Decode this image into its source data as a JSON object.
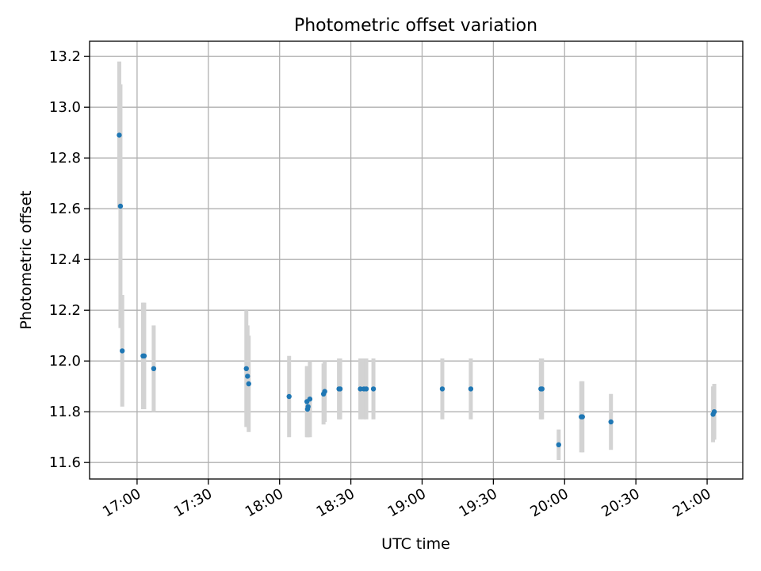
{
  "chart_data": {
    "type": "scatter",
    "title": "Photometric offset variation",
    "xlabel": "UTC time",
    "ylabel": "Photometric offset",
    "xlim": [
      "16:40",
      "21:15"
    ],
    "ylim": [
      11.535,
      13.26
    ],
    "grid": true,
    "x_ticks": [
      "17:00",
      "17:30",
      "18:00",
      "18:30",
      "19:00",
      "19:30",
      "20:00",
      "20:30",
      "21:00"
    ],
    "y_ticks": [
      "11.6",
      "11.8",
      "12.0",
      "12.2",
      "12.4",
      "12.6",
      "12.8",
      "13.0",
      "13.2"
    ],
    "colors": {
      "point": "#1f77b4",
      "errorbar": "#d3d3d3",
      "grid": "#b0b0b0"
    },
    "points": [
      {
        "x": "16:52:30",
        "y": 12.89,
        "yerr": 0.29
      },
      {
        "x": "16:53:00",
        "y": 12.61,
        "yerr": 0.48
      },
      {
        "x": "16:53:45",
        "y": 12.04,
        "yerr": 0.22
      },
      {
        "x": "17:02:30",
        "y": 12.02,
        "yerr": 0.21
      },
      {
        "x": "17:03:00",
        "y": 12.02,
        "yerr": 0.21
      },
      {
        "x": "17:07:00",
        "y": 11.97,
        "yerr": 0.17
      },
      {
        "x": "17:46:00",
        "y": 11.97,
        "yerr": 0.23
      },
      {
        "x": "17:46:30",
        "y": 11.94,
        "yerr": 0.2
      },
      {
        "x": "17:47:00",
        "y": 11.91,
        "yerr": 0.19
      },
      {
        "x": "18:04:00",
        "y": 11.86,
        "yerr": 0.16
      },
      {
        "x": "18:11:30",
        "y": 11.84,
        "yerr": 0.14
      },
      {
        "x": "18:11:45",
        "y": 11.81,
        "yerr": 0.11
      },
      {
        "x": "18:12:00",
        "y": 11.82,
        "yerr": 0.12
      },
      {
        "x": "18:12:45",
        "y": 11.85,
        "yerr": 0.15
      },
      {
        "x": "18:18:30",
        "y": 11.87,
        "yerr": 0.12
      },
      {
        "x": "18:19:00",
        "y": 11.88,
        "yerr": 0.12
      },
      {
        "x": "18:25:00",
        "y": 11.89,
        "yerr": 0.12
      },
      {
        "x": "18:25:30",
        "y": 11.89,
        "yerr": 0.12
      },
      {
        "x": "18:34:00",
        "y": 11.89,
        "yerr": 0.12
      },
      {
        "x": "18:35:30",
        "y": 11.89,
        "yerr": 0.12
      },
      {
        "x": "18:36:30",
        "y": 11.89,
        "yerr": 0.12
      },
      {
        "x": "18:39:30",
        "y": 11.89,
        "yerr": 0.12
      },
      {
        "x": "19:08:30",
        "y": 11.89,
        "yerr": 0.12
      },
      {
        "x": "19:20:30",
        "y": 11.89,
        "yerr": 0.12
      },
      {
        "x": "19:50:00",
        "y": 11.89,
        "yerr": 0.12
      },
      {
        "x": "19:50:30",
        "y": 11.89,
        "yerr": 0.12
      },
      {
        "x": "19:57:30",
        "y": 11.67,
        "yerr": 0.06
      },
      {
        "x": "20:07:00",
        "y": 11.78,
        "yerr": 0.14
      },
      {
        "x": "20:07:30",
        "y": 11.78,
        "yerr": 0.14
      },
      {
        "x": "20:19:30",
        "y": 11.76,
        "yerr": 0.11
      },
      {
        "x": "21:02:30",
        "y": 11.79,
        "yerr": 0.11
      },
      {
        "x": "21:03:00",
        "y": 11.8,
        "yerr": 0.11
      }
    ]
  }
}
